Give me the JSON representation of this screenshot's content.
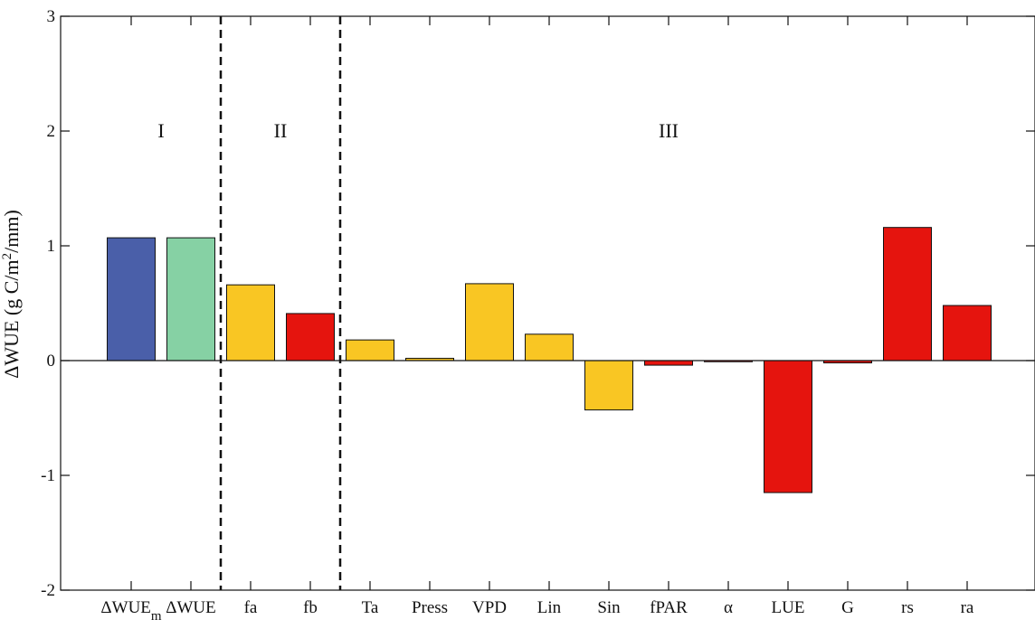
{
  "chart_data": {
    "type": "bar",
    "categories": [
      "ΔWUE_m",
      "ΔWUE",
      "fa",
      "fb",
      "Ta",
      "Press",
      "VPD",
      "Lin",
      "Sin",
      "fPAR",
      "α",
      "LUE",
      "G",
      "rs",
      "ra"
    ],
    "category_labels": [
      {
        "main": "ΔWUE",
        "sub": "m"
      },
      {
        "main": "ΔWUE",
        "sub": ""
      },
      {
        "main": "fa",
        "sub": ""
      },
      {
        "main": "fb",
        "sub": ""
      },
      {
        "main": "Ta",
        "sub": ""
      },
      {
        "main": "Press",
        "sub": ""
      },
      {
        "main": "VPD",
        "sub": ""
      },
      {
        "main": "Lin",
        "sub": ""
      },
      {
        "main": "Sin",
        "sub": ""
      },
      {
        "main": "fPAR",
        "sub": ""
      },
      {
        "main": "α",
        "sub": ""
      },
      {
        "main": "LUE",
        "sub": ""
      },
      {
        "main": "G",
        "sub": ""
      },
      {
        "main": "rs",
        "sub": ""
      },
      {
        "main": "ra",
        "sub": ""
      }
    ],
    "values": [
      1.07,
      1.07,
      0.66,
      0.41,
      0.18,
      0.02,
      0.67,
      0.23,
      -0.43,
      -0.04,
      -0.01,
      -1.15,
      -0.02,
      1.16,
      0.48
    ],
    "bar_colors": [
      "#4a5fa9",
      "#86d1a4",
      "#f9c623",
      "#e5140e",
      "#f9c623",
      "#f9c623",
      "#f9c623",
      "#f9c623",
      "#f9c623",
      "#e5140e",
      "#e5140e",
      "#e5140e",
      "#e5140e",
      "#e5140e",
      "#e5140e"
    ],
    "ylabel": {
      "prefix": "ΔWUE (g C/m",
      "sup": "2",
      "suffix": "/mm)"
    },
    "ylim": [
      -2,
      3
    ],
    "yticks": [
      "-2",
      "-1",
      "0",
      "1",
      "2",
      "3"
    ],
    "region_labels": [
      "I",
      "II",
      "III"
    ],
    "grid": false,
    "colors": {
      "axis": "#111111",
      "bar_edge": "#111111",
      "divider": "#111111"
    }
  }
}
